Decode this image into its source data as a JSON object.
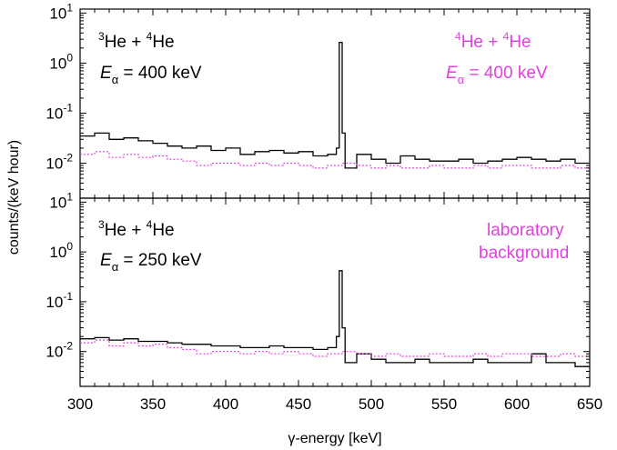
{
  "chart_data": {
    "type": "line",
    "xlabel": "γ-energy [keV]",
    "ylabel": "counts/(keV hour)",
    "xlim": [
      300,
      650
    ],
    "x_ticks": [
      "300",
      "350",
      "400",
      "450",
      "500",
      "550",
      "600",
      "650"
    ],
    "y_scale": "log",
    "ylim": [
      0.002,
      12
    ],
    "y_ticks": [
      {
        "base": "10",
        "exp": "1"
      },
      {
        "base": "10",
        "exp": "0"
      },
      {
        "base": "10",
        "exp": "-1"
      },
      {
        "base": "10",
        "exp": "-2"
      }
    ],
    "colors": {
      "spectrum": "#000000",
      "background": "#e040e0"
    },
    "panels": [
      {
        "annotations": {
          "left_reaction": {
            "pre": "3",
            "a": "He + ",
            "pre2": "4",
            "b": "He"
          },
          "left_energy": {
            "sym": "E",
            "sub": "α",
            "val": " = 400 keV"
          },
          "right_reaction": {
            "pre": "4",
            "a": "He + ",
            "pre2": "4",
            "b": "He"
          },
          "right_energy": {
            "sym": "E",
            "sub": "α",
            "val": " = 400 keV"
          }
        },
        "series": [
          {
            "style": "solid-step",
            "x": [
              300,
              310,
              320,
              330,
              340,
              350,
              360,
              370,
              380,
              390,
              400,
              410,
              420,
              430,
              440,
              450,
              460,
              470,
              476,
              478,
              480,
              482,
              490,
              500,
              510,
              520,
              530,
              540,
              550,
              560,
              570,
              580,
              590,
              600,
              610,
              620,
              630,
              640,
              650
            ],
            "values": [
              0.035,
              0.04,
              0.03,
              0.032,
              0.028,
              0.025,
              0.022,
              0.02,
              0.022,
              0.018,
              0.02,
              0.015,
              0.017,
              0.018,
              0.016,
              0.017,
              0.014,
              0.015,
              0.02,
              2.6,
              0.04,
              0.008,
              0.015,
              0.012,
              0.01,
              0.014,
              0.012,
              0.011,
              0.011,
              0.012,
              0.01,
              0.011,
              0.012,
              0.013,
              0.012,
              0.011,
              0.012,
              0.01,
              0.011
            ]
          },
          {
            "style": "dotted-step",
            "x": [
              300,
              310,
              320,
              330,
              340,
              350,
              360,
              370,
              380,
              390,
              400,
              410,
              420,
              430,
              440,
              450,
              460,
              470,
              480,
              490,
              500,
              510,
              520,
              530,
              540,
              550,
              560,
              570,
              580,
              590,
              600,
              610,
              620,
              630,
              640,
              650
            ],
            "values": [
              0.015,
              0.017,
              0.013,
              0.015,
              0.013,
              0.014,
              0.012,
              0.011,
              0.009,
              0.01,
              0.01,
              0.009,
              0.01,
              0.009,
              0.01,
              0.009,
              0.008,
              0.009,
              0.01,
              0.009,
              0.008,
              0.009,
              0.008,
              0.008,
              0.009,
              0.008,
              0.008,
              0.009,
              0.008,
              0.009,
              0.009,
              0.008,
              0.008,
              0.009,
              0.008,
              0.008
            ]
          }
        ]
      },
      {
        "annotations": {
          "left_reaction": {
            "pre": "3",
            "a": "He + ",
            "pre2": "4",
            "b": "He"
          },
          "left_energy": {
            "sym": "E",
            "sub": "α",
            "val": " = 250 keV"
          },
          "right_label_1": "laboratory",
          "right_label_2": "background"
        },
        "series": [
          {
            "style": "solid-step",
            "x": [
              300,
              310,
              320,
              330,
              340,
              350,
              360,
              370,
              380,
              390,
              400,
              410,
              420,
              430,
              440,
              450,
              460,
              470,
              476,
              478,
              480,
              482,
              490,
              500,
              510,
              520,
              530,
              540,
              550,
              560,
              570,
              580,
              590,
              600,
              610,
              620,
              630,
              640,
              650
            ],
            "values": [
              0.018,
              0.019,
              0.017,
              0.018,
              0.016,
              0.016,
              0.015,
              0.014,
              0.014,
              0.013,
              0.013,
              0.012,
              0.012,
              0.013,
              0.012,
              0.012,
              0.011,
              0.012,
              0.02,
              0.42,
              0.03,
              0.006,
              0.009,
              0.007,
              0.006,
              0.006,
              0.007,
              0.006,
              0.006,
              0.006,
              0.007,
              0.006,
              0.006,
              0.006,
              0.009,
              0.006,
              0.006,
              0.005,
              0.006
            ]
          },
          {
            "style": "dotted-step",
            "x": [
              300,
              310,
              320,
              330,
              340,
              350,
              360,
              370,
              380,
              390,
              400,
              410,
              420,
              430,
              440,
              450,
              460,
              470,
              480,
              490,
              500,
              510,
              520,
              530,
              540,
              550,
              560,
              570,
              580,
              590,
              600,
              610,
              620,
              630,
              640,
              650
            ],
            "values": [
              0.015,
              0.017,
              0.013,
              0.015,
              0.013,
              0.014,
              0.012,
              0.011,
              0.009,
              0.01,
              0.01,
              0.009,
              0.01,
              0.009,
              0.01,
              0.009,
              0.008,
              0.009,
              0.01,
              0.009,
              0.008,
              0.009,
              0.008,
              0.008,
              0.009,
              0.008,
              0.008,
              0.009,
              0.008,
              0.009,
              0.009,
              0.008,
              0.008,
              0.009,
              0.008,
              0.008
            ]
          }
        ]
      }
    ]
  }
}
